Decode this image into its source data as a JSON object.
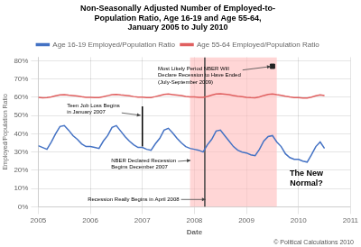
{
  "chart_data": {
    "type": "line",
    "title": "Non-Seasonally Adjusted Number of Employed-to-\nPopulation Ratio, Age 16-19 and Age 55-64,\nJanuary 2005 to July 2010",
    "xlabel": "Date",
    "ylabel": "Employed/Population Ratio",
    "footer": "© Political Calculations 2010",
    "x": [
      2005.0,
      2005.083,
      2005.167,
      2005.25,
      2005.333,
      2005.417,
      2005.5,
      2005.583,
      2005.667,
      2005.75,
      2005.833,
      2005.917,
      2006.0,
      2006.083,
      2006.167,
      2006.25,
      2006.333,
      2006.417,
      2006.5,
      2006.583,
      2006.667,
      2006.75,
      2006.833,
      2006.917,
      2007.0,
      2007.083,
      2007.167,
      2007.25,
      2007.333,
      2007.417,
      2007.5,
      2007.583,
      2007.667,
      2007.75,
      2007.833,
      2007.917,
      2008.0,
      2008.083,
      2008.167,
      2008.25,
      2008.333,
      2008.417,
      2008.5,
      2008.583,
      2008.667,
      2008.75,
      2008.833,
      2008.917,
      2009.0,
      2009.083,
      2009.167,
      2009.25,
      2009.333,
      2009.417,
      2009.5,
      2009.583,
      2009.667,
      2009.75,
      2009.833,
      2009.917,
      2010.0,
      2010.083,
      2010.167,
      2010.25,
      2010.333,
      2010.417,
      2010.5
    ],
    "series": [
      {
        "name": "Age 16-19 Employed/Population Ratio",
        "color": "#4472C4",
        "values": [
          0.335,
          0.325,
          0.315,
          0.355,
          0.4,
          0.44,
          0.445,
          0.42,
          0.39,
          0.37,
          0.345,
          0.33,
          0.33,
          0.325,
          0.32,
          0.36,
          0.39,
          0.435,
          0.445,
          0.415,
          0.385,
          0.36,
          0.34,
          0.325,
          0.325,
          0.315,
          0.31,
          0.345,
          0.375,
          0.42,
          0.43,
          0.405,
          0.375,
          0.35,
          0.33,
          0.32,
          0.315,
          0.31,
          0.3,
          0.34,
          0.37,
          0.415,
          0.42,
          0.39,
          0.36,
          0.33,
          0.31,
          0.3,
          0.295,
          0.285,
          0.28,
          0.315,
          0.36,
          0.385,
          0.39,
          0.355,
          0.33,
          0.29,
          0.27,
          0.26,
          0.26,
          0.25,
          0.245,
          0.285,
          0.33,
          0.355,
          0.32
        ]
      },
      {
        "name": "Age 55-64 Employed/Population Ratio",
        "color": "#E06060",
        "values": [
          0.6,
          0.597,
          0.598,
          0.602,
          0.608,
          0.613,
          0.615,
          0.612,
          0.61,
          0.607,
          0.603,
          0.6,
          0.6,
          0.598,
          0.599,
          0.603,
          0.609,
          0.614,
          0.616,
          0.613,
          0.611,
          0.608,
          0.604,
          0.601,
          0.601,
          0.598,
          0.599,
          0.604,
          0.61,
          0.616,
          0.618,
          0.615,
          0.612,
          0.609,
          0.605,
          0.602,
          0.602,
          0.6,
          0.6,
          0.605,
          0.612,
          0.618,
          0.62,
          0.617,
          0.614,
          0.61,
          0.606,
          0.603,
          0.6,
          0.598,
          0.597,
          0.602,
          0.61,
          0.616,
          0.618,
          0.614,
          0.611,
          0.606,
          0.602,
          0.599,
          0.598,
          0.596,
          0.596,
          0.601,
          0.608,
          0.613,
          0.61
        ]
      }
    ],
    "xlim": [
      2005.0,
      2011.0
    ],
    "ylim": [
      0.0,
      0.82
    ],
    "xticks": [
      2005,
      2006,
      2007,
      2008,
      2009,
      2010,
      2011
    ],
    "yticks": [
      {
        "value": 0.0,
        "label": "0%"
      },
      {
        "value": 0.1,
        "label": "10%"
      },
      {
        "value": 0.2,
        "label": "20%"
      },
      {
        "value": 0.3,
        "label": "30%"
      },
      {
        "value": 0.4,
        "label": "40%"
      },
      {
        "value": 0.5,
        "label": "50%"
      },
      {
        "value": 0.6,
        "label": "60%"
      },
      {
        "value": 0.7,
        "label": "70%"
      },
      {
        "value": 0.8,
        "label": "80%"
      }
    ],
    "grid": true,
    "legend": "top",
    "shaded_regions": [
      {
        "start": 2007.917,
        "end": 2009.583,
        "color": "#FFBBBB"
      }
    ],
    "vertical_lines": [
      {
        "x": 2008.2,
        "y_from": 0.0,
        "y_to": 0.82,
        "color": "#444444"
      },
      {
        "x": 2007.0,
        "y_from": 0.33,
        "y_to": 0.55,
        "color": "#000000"
      }
    ],
    "markers": [
      {
        "x": 2009.5,
        "y": 0.77,
        "marker": "square",
        "color": "#222222"
      }
    ],
    "annotations": [
      {
        "text": "Most Likely Period NBER Will\nDeclare Recession to Have Ended\n(July-September 2009)",
        "x": 2007.3,
        "y": 0.72,
        "arrow_x": 2009.5,
        "arrow_y": 0.77,
        "arrow_color": "#444444"
      },
      {
        "text": "Teen Job Loss Begins\nin January 2007",
        "x": 2005.55,
        "y": 0.535,
        "arrow_x": 2007.0,
        "arrow_y": 0.5,
        "arrow_color": "#444444"
      },
      {
        "text": "NBER Declared Recession\nBegins December 2007",
        "x": 2006.4,
        "y": 0.235,
        "arrow_x": 2007.96,
        "arrow_y": 0.255,
        "arrow_color": "#444444"
      },
      {
        "text": "Recession Really Begins in April 2008",
        "x": 2005.95,
        "y": 0.04,
        "arrow_x": 2008.25,
        "arrow_y": 0.04,
        "arrow_color": "#444444"
      },
      {
        "text": "The New\nNormal?",
        "x": 2010.15,
        "y": 0.155
      }
    ]
  }
}
